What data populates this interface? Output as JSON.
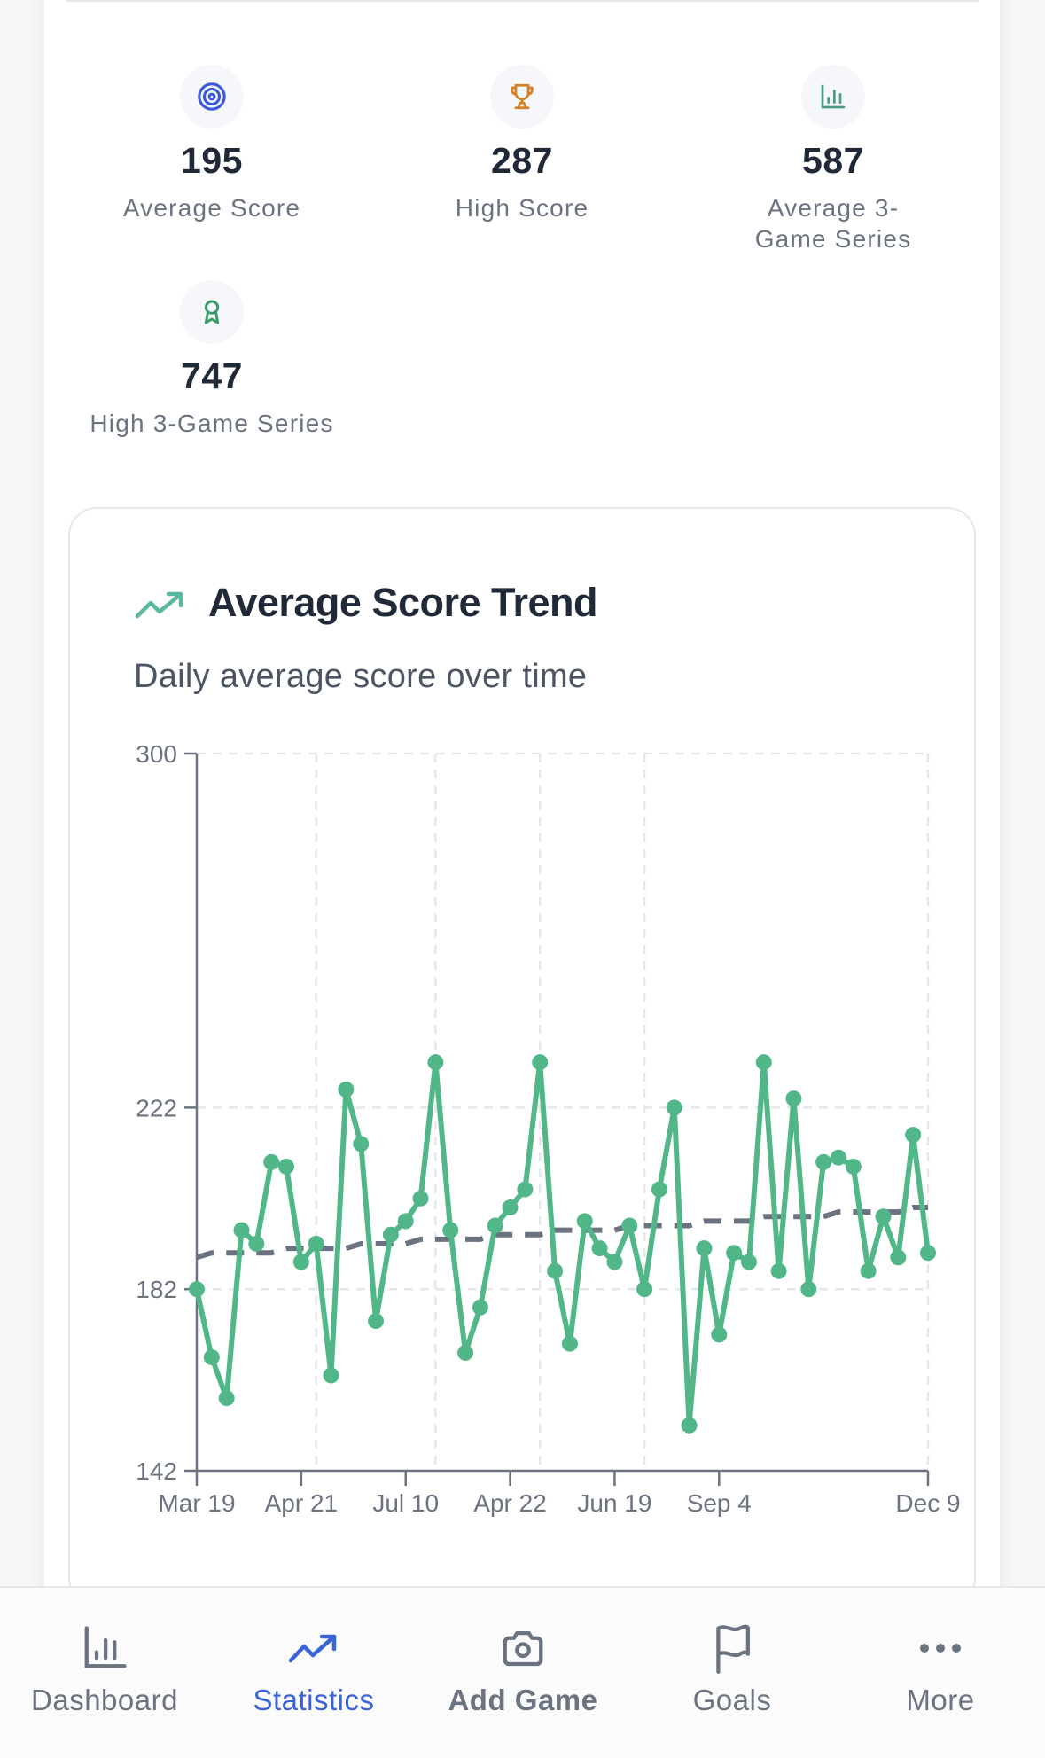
{
  "stats": [
    {
      "value": "195",
      "label": "Average Score",
      "icon": "target-icon",
      "color": "#3b5bdb"
    },
    {
      "value": "287",
      "label": "High Score",
      "icon": "trophy-icon",
      "color": "#d4822a"
    },
    {
      "value": "587",
      "label": "Average 3-Game Series",
      "icon": "bar-chart-icon",
      "color": "#4a9a8a"
    },
    {
      "value": "747",
      "label": "High 3-Game Series",
      "icon": "award-icon",
      "color": "#3a9a68"
    }
  ],
  "trend_card": {
    "icon": "trending-up-icon",
    "icon_color": "#5bb8a0",
    "title": "Average Score Trend",
    "subtitle": "Daily average score over time"
  },
  "chart_data": {
    "type": "line",
    "title": "Average Score Trend",
    "subtitle": "Daily average score over time",
    "xlabel": "",
    "ylabel": "",
    "ylim": [
      142,
      300
    ],
    "y_ticks": [
      142,
      182,
      222,
      300
    ],
    "x_tick_labels": [
      {
        "index": 0,
        "label": "Mar 19"
      },
      {
        "index": 7,
        "label": "Apr 21"
      },
      {
        "index": 14,
        "label": "Jul 10"
      },
      {
        "index": 21,
        "label": "Apr 22"
      },
      {
        "index": 28,
        "label": "Jun 19"
      },
      {
        "index": 35,
        "label": "Sep 4"
      },
      {
        "index": 49,
        "label": "Dec 9"
      }
    ],
    "grid": {
      "horizontal_at": [
        182,
        222,
        300
      ],
      "vertical_at_index": [
        8,
        16,
        23,
        30,
        49
      ],
      "style": "dashed"
    },
    "legend": "none",
    "series": [
      {
        "name": "Daily average",
        "color": "#52b788",
        "style": "solid with markers",
        "values": [
          182,
          167,
          158,
          195,
          192,
          210,
          209,
          188,
          192,
          163,
          226,
          214,
          175,
          194,
          197,
          202,
          232,
          195,
          168,
          178,
          196,
          200,
          204,
          232,
          186,
          170,
          197,
          191,
          188,
          196,
          182,
          204,
          222,
          152,
          191,
          172,
          190,
          188,
          232,
          186,
          224,
          182,
          210,
          211,
          209,
          186,
          198,
          189,
          216,
          190
        ]
      },
      {
        "name": "Trend",
        "color": "#6b7280",
        "style": "dashed",
        "values": [
          189,
          190,
          190,
          190,
          190,
          190,
          191,
          191,
          191,
          191,
          191,
          192,
          192,
          192,
          192,
          193,
          193,
          193,
          193,
          193,
          194,
          194,
          194,
          194,
          195,
          195,
          195,
          195,
          195,
          196,
          196,
          196,
          196,
          196,
          197,
          197,
          197,
          197,
          198,
          198,
          198,
          198,
          198,
          199,
          199,
          199,
          199,
          199,
          200,
          200
        ]
      }
    ]
  },
  "bottom_nav": {
    "items": [
      {
        "label": "Dashboard",
        "icon": "bar-chart-icon",
        "active": false
      },
      {
        "label": "Statistics",
        "icon": "trending-up-icon",
        "active": true
      },
      {
        "label": "Add Game",
        "icon": "camera-icon",
        "active": false
      },
      {
        "label": "Goals",
        "icon": "flag-icon",
        "active": false
      },
      {
        "label": "More",
        "icon": "more-horizontal-icon",
        "active": false
      }
    ],
    "active_color": "#3b63d8",
    "inactive_color": "#6b7280"
  }
}
